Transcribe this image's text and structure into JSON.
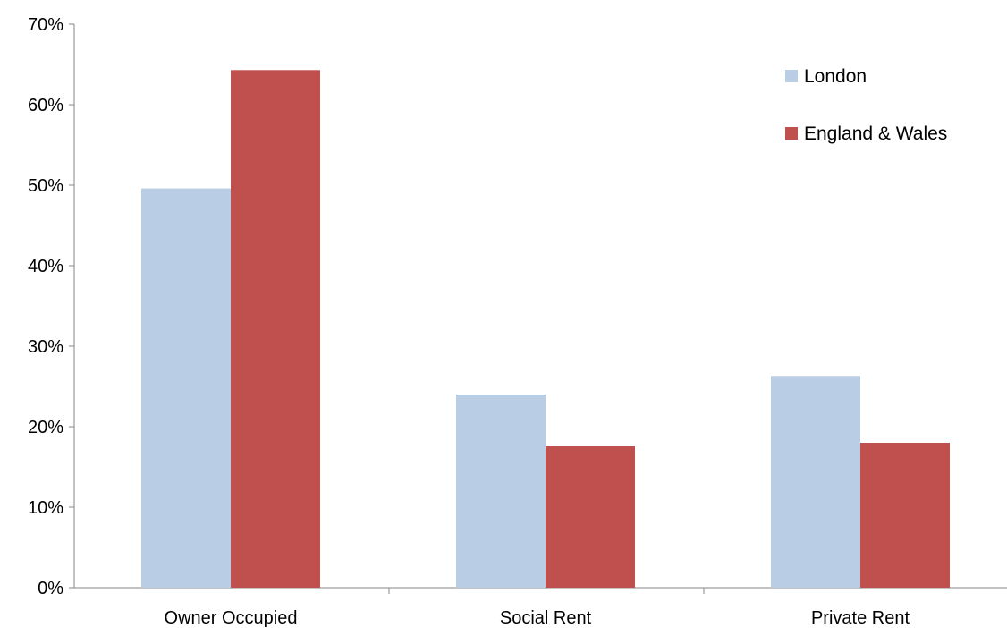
{
  "chart_data": {
    "type": "bar",
    "title": "",
    "xlabel": "",
    "ylabel": "",
    "categories": [
      "Owner Occupied",
      "Social Rent",
      "Private Rent"
    ],
    "series": [
      {
        "name": "London",
        "values": [
          49.6,
          24.0,
          26.3
        ],
        "color": "#b9cde5"
      },
      {
        "name": "England & Wales",
        "values": [
          64.3,
          17.6,
          18.0
        ],
        "color": "#c0504d"
      }
    ],
    "ylim": [
      0,
      70
    ],
    "yticks": [
      0,
      10,
      20,
      30,
      40,
      50,
      60,
      70
    ],
    "ytick_labels": [
      "0%",
      "10%",
      "20%",
      "30%",
      "40%",
      "50%",
      "60%",
      "70%"
    ],
    "grid": false,
    "legend_position": "top-right"
  }
}
